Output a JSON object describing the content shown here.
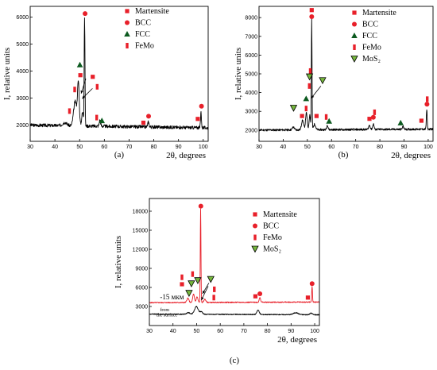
{
  "colors": {
    "marker_red": "#e8202a",
    "trace_black": "#000000",
    "trace_red": "#e8202a",
    "fcc_green": "#0c5a1f",
    "mos2_green": "#77b83e"
  },
  "chart_data": [
    {
      "id": "a",
      "type": "line",
      "caption": "(a)",
      "xlabel": "2θ, degrees",
      "ylabel": "I, relative units",
      "xlim": [
        30,
        102
      ],
      "ylim": [
        1400,
        6400
      ],
      "xticks": [
        30,
        40,
        50,
        60,
        70,
        80,
        90,
        100
      ],
      "yticks": [
        2000,
        3000,
        4000,
        5000,
        6000
      ],
      "legend": [
        {
          "label": "Martensite",
          "marker": "square",
          "color": "#e8202a"
        },
        {
          "label": "BCC",
          "marker": "circle",
          "color": "#e8202a"
        },
        {
          "label": "FCC",
          "marker": "triangle",
          "color": "#0c5a1f"
        },
        {
          "label": "FeMo",
          "marker": "bar",
          "color": "#e8202a"
        }
      ],
      "series": [
        {
          "name": "",
          "color": "#000000",
          "noise": 60,
          "seed": 3,
          "baseline": [
            [
              30,
              2000
            ],
            [
              102,
              1900
            ]
          ],
          "peaks": [
            [
              44.0,
              120,
              1.2
            ],
            [
              48.2,
              900,
              0.9
            ],
            [
              49.5,
              1550,
              0.5
            ],
            [
              52.0,
              4000,
              0.22
            ],
            [
              51.2,
              500,
              0.5
            ],
            [
              58.2,
              220,
              0.4
            ],
            [
              77.8,
              180,
              0.4
            ],
            [
              99.1,
              600,
              0.25
            ]
          ]
        }
      ],
      "markers": [
        {
          "shape": "circle",
          "x": 52.2,
          "y": 6130,
          "color": "#e8202a"
        },
        {
          "shape": "triangle",
          "x": 50.1,
          "y": 4230,
          "color": "#0c5a1f"
        },
        {
          "shape": "square",
          "x": 50.3,
          "y": 3850,
          "color": "#e8202a"
        },
        {
          "shape": "square",
          "x": 55.3,
          "y": 3790,
          "color": "#e8202a"
        },
        {
          "shape": "bar",
          "x": 48.0,
          "y": 3320,
          "color": "#e8202a"
        },
        {
          "shape": "bar",
          "x": 57.1,
          "y": 3420,
          "color": "#e8202a"
        },
        {
          "shape": "bar",
          "x": 45.9,
          "y": 2520,
          "color": "#e8202a"
        },
        {
          "shape": "bar",
          "x": 56.9,
          "y": 2280,
          "color": "#e8202a"
        },
        {
          "shape": "triangle",
          "x": 59.0,
          "y": 2160,
          "color": "#0c5a1f"
        },
        {
          "shape": "square",
          "x": 75.8,
          "y": 2090,
          "color": "#e8202a"
        },
        {
          "shape": "circle",
          "x": 77.9,
          "y": 2330,
          "color": "#e8202a"
        },
        {
          "shape": "square",
          "x": 97.8,
          "y": 2230,
          "color": "#e8202a"
        },
        {
          "shape": "circle",
          "x": 99.3,
          "y": 2700,
          "color": "#e8202a"
        }
      ],
      "arrows": [
        [
          52.5,
          3720,
          50.6,
          3170
        ],
        [
          55.2,
          3360,
          51.0,
          2980
        ]
      ]
    },
    {
      "id": "b",
      "type": "line",
      "caption": "(b)",
      "xlabel": "2θ, degrees",
      "ylabel": "I, relative units",
      "xlim": [
        30,
        102
      ],
      "ylim": [
        1400,
        8600
      ],
      "xticks": [
        30,
        40,
        50,
        60,
        70,
        80,
        90,
        100
      ],
      "yticks": [
        2000,
        3000,
        4000,
        5000,
        6000,
        7000,
        8000
      ],
      "legend": [
        {
          "label": "Martensite",
          "marker": "square",
          "color": "#e8202a"
        },
        {
          "label": "BCC",
          "marker": "circle",
          "color": "#e8202a"
        },
        {
          "label": "FCC",
          "marker": "triangle",
          "color": "#0c5a1f"
        },
        {
          "label": "FeMo",
          "marker": "bar",
          "color": "#e8202a"
        },
        {
          "label": "MoS₂",
          "marker": "triangle-down",
          "color": "#77b83e"
        }
      ],
      "series": [
        {
          "name": "",
          "color": "#000000",
          "noise": 55,
          "seed": 11,
          "baseline": [
            [
              30,
              2000
            ],
            [
              102,
              2050
            ]
          ],
          "peaks": [
            [
              44.2,
              150,
              0.6
            ],
            [
              48.0,
              500,
              0.6
            ],
            [
              49.6,
              900,
              0.5
            ],
            [
              51.8,
              5900,
              0.2
            ],
            [
              51.0,
              800,
              0.4
            ],
            [
              53.0,
              300,
              0.6
            ],
            [
              58.3,
              250,
              0.4
            ],
            [
              75.7,
              220,
              0.5
            ],
            [
              77.3,
              300,
              0.4
            ],
            [
              89.6,
              150,
              0.4
            ],
            [
              99.4,
              1050,
              0.25
            ]
          ]
        }
      ],
      "markers": [
        {
          "shape": "square",
          "x": 51.8,
          "y": 8400,
          "color": "#e8202a"
        },
        {
          "shape": "circle",
          "x": 51.8,
          "y": 8050,
          "color": "#e8202a"
        },
        {
          "shape": "bar",
          "x": 51.2,
          "y": 5150,
          "color": "#e8202a"
        },
        {
          "shape": "triangle-down",
          "x": 50.9,
          "y": 4850,
          "color": "#77b83e"
        },
        {
          "shape": "triangle-down",
          "x": 56.3,
          "y": 4650,
          "color": "#77b83e"
        },
        {
          "shape": "bar",
          "x": 50.8,
          "y": 4350,
          "color": "#e8202a"
        },
        {
          "shape": "triangle",
          "x": 49.5,
          "y": 3670,
          "color": "#0c5a1f"
        },
        {
          "shape": "bar",
          "x": 49.5,
          "y": 3150,
          "color": "#e8202a"
        },
        {
          "shape": "triangle-down",
          "x": 44.3,
          "y": 3180,
          "color": "#77b83e"
        },
        {
          "shape": "square",
          "x": 47.8,
          "y": 2750,
          "color": "#e8202a"
        },
        {
          "shape": "square",
          "x": 53.8,
          "y": 2750,
          "color": "#e8202a"
        },
        {
          "shape": "bar",
          "x": 57.8,
          "y": 2700,
          "color": "#e8202a"
        },
        {
          "shape": "triangle",
          "x": 59.0,
          "y": 2470,
          "color": "#0c5a1f"
        },
        {
          "shape": "square",
          "x": 75.7,
          "y": 2600,
          "color": "#e8202a"
        },
        {
          "shape": "circle",
          "x": 77.3,
          "y": 2680,
          "color": "#e8202a"
        },
        {
          "shape": "bar",
          "x": 77.8,
          "y": 2950,
          "color": "#e8202a"
        },
        {
          "shape": "triangle",
          "x": 88.6,
          "y": 2380,
          "color": "#0c5a1f"
        },
        {
          "shape": "square",
          "x": 97.2,
          "y": 2500,
          "color": "#e8202a"
        },
        {
          "shape": "bar",
          "x": 99.6,
          "y": 3650,
          "color": "#e8202a"
        },
        {
          "shape": "circle",
          "x": 99.5,
          "y": 3380,
          "color": "#e8202a"
        }
      ],
      "arrows": [
        [
          55.6,
          4350,
          51.6,
          3700
        ]
      ]
    },
    {
      "id": "c",
      "type": "line",
      "caption": "(c)",
      "xlabel": "2θ, degrees",
      "ylabel": "I, relative units",
      "xlim": [
        30,
        102
      ],
      "ylim": [
        0,
        20000
      ],
      "xticks": [
        30,
        40,
        50,
        60,
        70,
        80,
        90,
        100
      ],
      "yticks": [
        3000,
        6000,
        9000,
        12000,
        15000,
        18000
      ],
      "legend": [
        {
          "label": "Martensite",
          "marker": "square",
          "color": "#e8202a"
        },
        {
          "label": "BCC",
          "marker": "circle",
          "color": "#e8202a"
        },
        {
          "label": "FeMo",
          "marker": "bar",
          "color": "#e8202a"
        },
        {
          "label": "MoS₂",
          "marker": "triangle-down",
          "color": "#77b83e"
        }
      ],
      "annotations": [
        {
          "text": "-15 мкм",
          "x": 34.5,
          "y": 4150,
          "size": "normal"
        },
        {
          "text": "from",
          "x": 34.5,
          "y": 2250,
          "size": "small"
        },
        {
          "text": "the surface",
          "x": 33.0,
          "y": 1450,
          "size": "small"
        }
      ],
      "series": [
        {
          "name": "",
          "color": "#e8202a",
          "noise": 80,
          "seed": 5,
          "baseline": [
            [
              30,
              3600
            ],
            [
              102,
              3700
            ]
          ],
          "peaks": [
            [
              46.3,
              700,
              0.6
            ],
            [
              48.7,
              1300,
              0.5
            ],
            [
              50.2,
              900,
              0.5
            ],
            [
              51.7,
              14800,
              0.2
            ],
            [
              53.5,
              500,
              0.6
            ],
            [
              76.8,
              800,
              0.4
            ],
            [
              98.9,
              2500,
              0.22
            ]
          ]
        },
        {
          "name": "",
          "color": "#000000",
          "noise": 70,
          "seed": 9,
          "baseline": [
            [
              30,
              1800
            ],
            [
              102,
              1700
            ]
          ],
          "peaks": [
            [
              46.5,
              250,
              1.0
            ],
            [
              49.9,
              1200,
              1.1
            ],
            [
              52.0,
              400,
              0.8
            ],
            [
              76.0,
              700,
              0.7
            ],
            [
              92.0,
              300,
              1.5
            ],
            [
              98.5,
              250,
              0.7
            ]
          ]
        }
      ],
      "markers": [
        {
          "shape": "circle",
          "x": 51.8,
          "y": 18800,
          "color": "#e8202a"
        },
        {
          "shape": "triangle-down",
          "x": 50.5,
          "y": 7100,
          "color": "#77b83e"
        },
        {
          "shape": "bar",
          "x": 48.3,
          "y": 8100,
          "color": "#e8202a"
        },
        {
          "shape": "bar",
          "x": 43.8,
          "y": 7600,
          "color": "#e8202a"
        },
        {
          "shape": "square",
          "x": 43.8,
          "y": 6500,
          "color": "#e8202a"
        },
        {
          "shape": "triangle-down",
          "x": 47.8,
          "y": 6600,
          "color": "#77b83e"
        },
        {
          "shape": "triangle-down",
          "x": 46.8,
          "y": 5100,
          "color": "#77b83e"
        },
        {
          "shape": "triangle-down",
          "x": 56.0,
          "y": 7300,
          "color": "#77b83e"
        },
        {
          "shape": "bar",
          "x": 57.5,
          "y": 5700,
          "color": "#e8202a"
        },
        {
          "shape": "bar",
          "x": 57.3,
          "y": 4400,
          "color": "#e8202a"
        },
        {
          "shape": "square",
          "x": 74.9,
          "y": 4600,
          "color": "#e8202a"
        },
        {
          "shape": "circle",
          "x": 76.8,
          "y": 5000,
          "color": "#e8202a"
        },
        {
          "shape": "square",
          "x": 97.1,
          "y": 4400,
          "color": "#e8202a"
        },
        {
          "shape": "circle",
          "x": 98.9,
          "y": 6600,
          "color": "#e8202a"
        }
      ],
      "arrows": [
        [
          55.2,
          6700,
          52.5,
          5000
        ],
        [
          54.9,
          6200,
          52.0,
          4000
        ]
      ]
    }
  ]
}
